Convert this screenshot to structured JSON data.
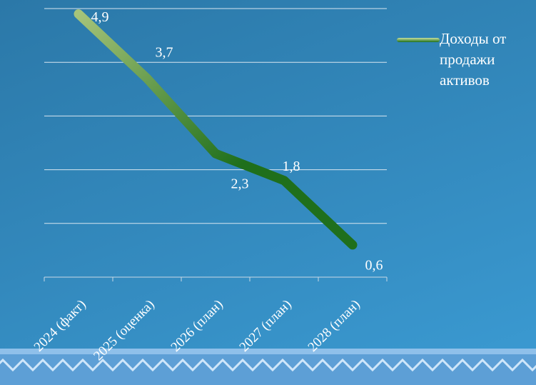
{
  "chart_data": {
    "type": "line",
    "categories": [
      "2024 (факт)",
      "2025 (оценка)",
      "2026 (план)",
      "2027 (план)",
      "2028 (план)"
    ],
    "series": [
      {
        "name": "Доходы от продажи активов",
        "color": "#1f6f1c",
        "values": [
          4.9,
          3.7,
          2.3,
          1.8,
          0.6
        ],
        "value_labels": [
          "4,9",
          "3,7",
          "2,3",
          "1,8",
          "0,6"
        ]
      }
    ],
    "ylim": [
      0,
      5
    ],
    "yticks": [
      0,
      1,
      2,
      3,
      4,
      5
    ],
    "grid": true,
    "legend": "right"
  }
}
